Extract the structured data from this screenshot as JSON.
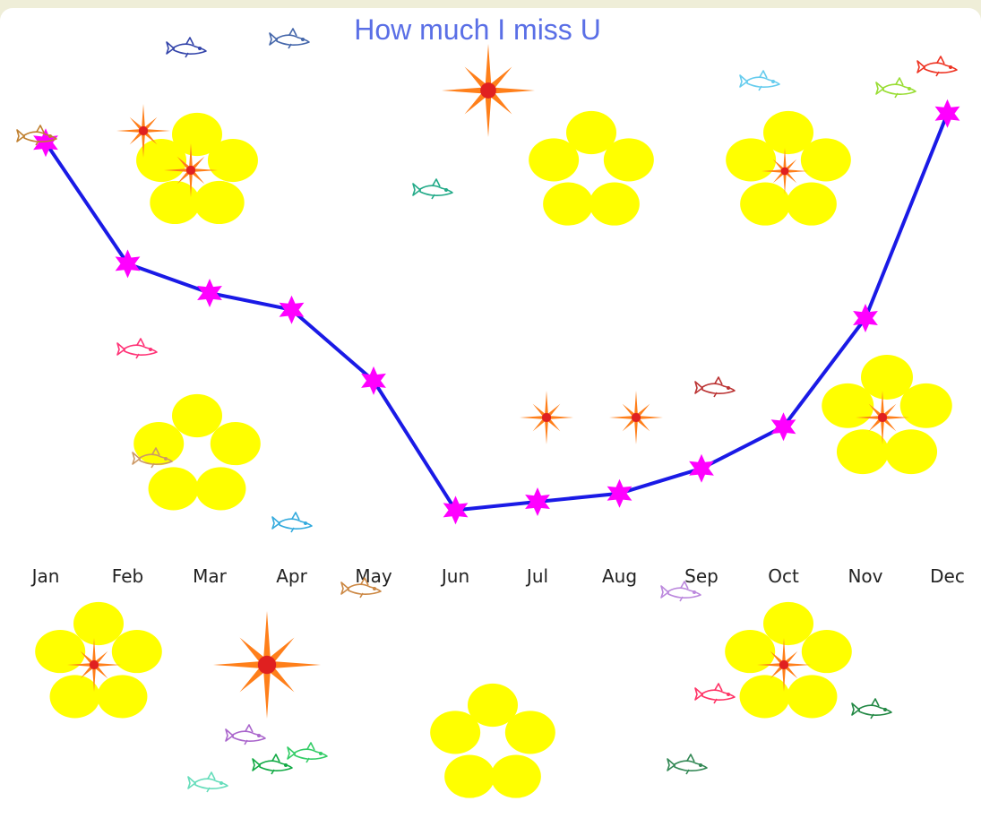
{
  "chart_data": {
    "type": "line",
    "title": "How much I miss U",
    "xlabel": "",
    "ylabel": "",
    "categories": [
      "Jan",
      "Feb",
      "Mar",
      "Apr",
      "May",
      "Jun",
      "Jul",
      "Aug",
      "Sep",
      "Oct",
      "Nov",
      "Dec"
    ],
    "series": [
      {
        "values": [
          92,
          63,
          56,
          52,
          35,
          4,
          6,
          8,
          14,
          24,
          50,
          99
        ]
      }
    ],
    "ylim": [
      0,
      100
    ],
    "grid": false,
    "legend": "none",
    "line_color": "#1a1ae6",
    "marker": "magenta-star",
    "marker_color": "#ff00ff",
    "title_color": "#5a6fe6"
  },
  "decorations": {
    "flower_color": "#ffff00",
    "burst_color": "#ff7f1a",
    "burst_center_color": "#e02020",
    "fish_colors": [
      "#3344aa",
      "#4466aa",
      "#c08030",
      "#ff3377",
      "#22aa88",
      "#66ccee",
      "#99dd33",
      "#ee3322",
      "#bb3333",
      "#cc9966",
      "#33aadd",
      "#cc8844",
      "#bb88dd",
      "#ff3366",
      "#228844",
      "#aa66cc",
      "#33cc66",
      "#66ddbb",
      "#11aa44",
      "#338855"
    ]
  }
}
